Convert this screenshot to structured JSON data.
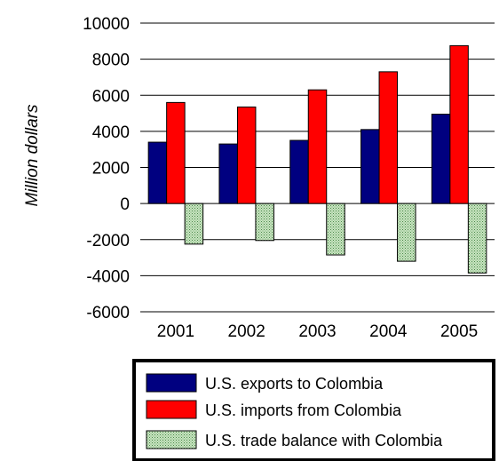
{
  "chart_data": {
    "type": "bar",
    "title": "",
    "xlabel": "",
    "ylabel": "Million dollars",
    "categories": [
      "2001",
      "2002",
      "2003",
      "2004",
      "2005"
    ],
    "ylim": [
      -6000,
      10000
    ],
    "yticks": [
      10000,
      8000,
      6000,
      4000,
      2000,
      0,
      -2000,
      -4000,
      -6000
    ],
    "grid": "horizontal",
    "legend_position": "bottom",
    "series": [
      {
        "name": "U.S. exports to Colombia",
        "color": "#000080",
        "values": [
          3400,
          3300,
          3500,
          4100,
          4950
        ]
      },
      {
        "name": "U.S. imports from Colombia",
        "color": "#ff0000",
        "values": [
          5600,
          5350,
          6300,
          7300,
          8750
        ]
      },
      {
        "name": "U.S. trade balance with Colombia",
        "color": "#c6e0b4",
        "pattern": "dotted-green",
        "values": [
          -2250,
          -2050,
          -2850,
          -3200,
          -3850
        ]
      }
    ]
  }
}
